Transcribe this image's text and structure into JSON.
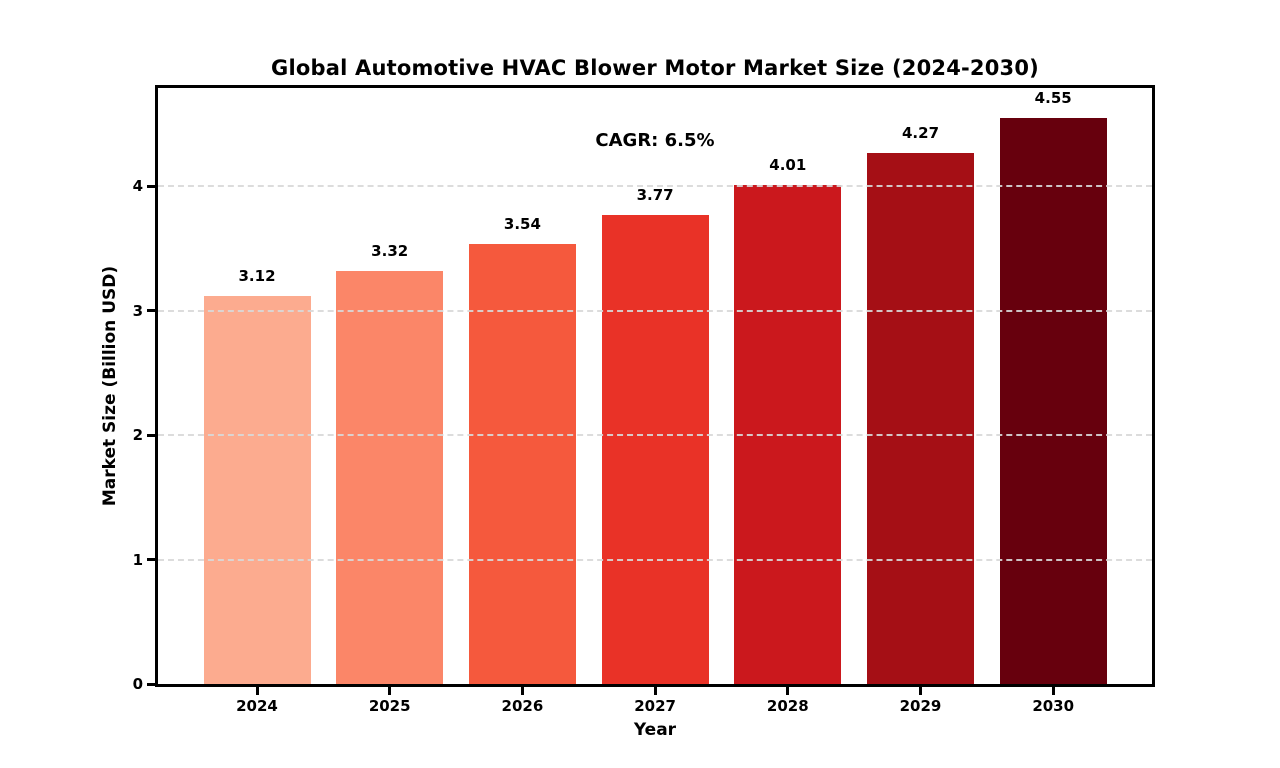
{
  "chart_data": {
    "type": "bar",
    "title": "Global Automotive HVAC Blower Motor Market Size (2024-2030)",
    "xlabel": "Year",
    "ylabel": "Market Size (Billion USD)",
    "categories": [
      "2024",
      "2025",
      "2026",
      "2027",
      "2028",
      "2029",
      "2030"
    ],
    "values": [
      3.12,
      3.32,
      3.54,
      3.77,
      4.01,
      4.27,
      4.55
    ],
    "bar_labels": [
      "3.12",
      "3.32",
      "3.54",
      "3.77",
      "4.01",
      "4.27",
      "4.55"
    ],
    "bar_colors": [
      "#fcab8f",
      "#fb8668",
      "#f5593d",
      "#e93227",
      "#cb181d",
      "#a50f15",
      "#67000d"
    ],
    "annotation": "CAGR: 6.5%",
    "yticks": [
      0,
      1,
      2,
      3,
      4
    ],
    "ytick_labels": [
      "0",
      "1",
      "2",
      "3",
      "4"
    ],
    "ylim": [
      0,
      4.79
    ],
    "grid": "horizontal dashed, drawn above bars",
    "legend": "none",
    "colors": {
      "background": "#ffffff",
      "axis_frame": "#000000",
      "gridline": "#d9d9d9",
      "text": "#000000"
    }
  }
}
